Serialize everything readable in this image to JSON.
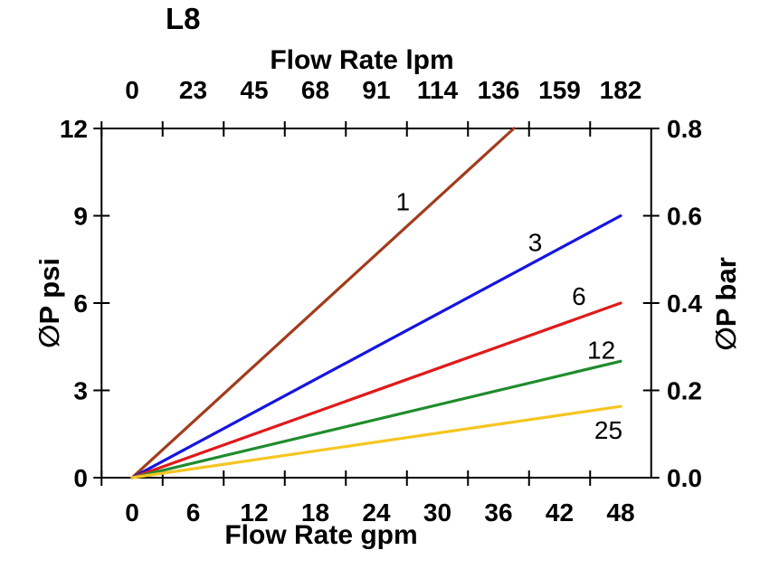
{
  "title": "L8",
  "chart_data": {
    "type": "line",
    "title": "L8",
    "grid": false,
    "legend": "inline-curve-labels",
    "x_bottom": {
      "label": "Flow Rate gpm",
      "ticks": [
        0,
        6,
        12,
        18,
        24,
        30,
        36,
        42,
        48
      ],
      "range": [
        0,
        48
      ]
    },
    "x_top": {
      "label": "Flow Rate lpm",
      "ticks": [
        0,
        23,
        45,
        68,
        91,
        114,
        136,
        159,
        182
      ],
      "range": [
        0,
        182
      ]
    },
    "y_left": {
      "label": "∅P psi",
      "ticks": [
        0,
        3,
        6,
        9,
        12
      ],
      "range": [
        0,
        12
      ]
    },
    "y_right": {
      "label": "∅P bar",
      "ticks": [
        "0.0",
        "0.2",
        "0.4",
        "0.6",
        "0.8"
      ],
      "range": [
        0.0,
        0.8
      ]
    },
    "series": [
      {
        "name": "1",
        "color": "#A23C1C",
        "points": [
          [
            0,
            0
          ],
          [
            37.5,
            12
          ]
        ],
        "label_at": [
          26.6,
          9.5
        ]
      },
      {
        "name": "3",
        "color": "#1515E0",
        "points": [
          [
            0,
            0
          ],
          [
            48,
            9.0
          ]
        ],
        "label_at": [
          39.6,
          8.1
        ]
      },
      {
        "name": "6",
        "color": "#E01A1A",
        "points": [
          [
            0,
            0
          ],
          [
            48,
            6.0
          ]
        ],
        "label_at": [
          43.9,
          6.25
        ]
      },
      {
        "name": "12",
        "color": "#1F8C2D",
        "points": [
          [
            0,
            0
          ],
          [
            48,
            4.0
          ]
        ],
        "label_at": [
          46.1,
          4.4
        ]
      },
      {
        "name": "25",
        "color": "#F5C521",
        "points": [
          [
            0,
            0
          ],
          [
            48,
            2.45
          ]
        ],
        "label_at": [
          46.8,
          1.65
        ]
      }
    ]
  }
}
